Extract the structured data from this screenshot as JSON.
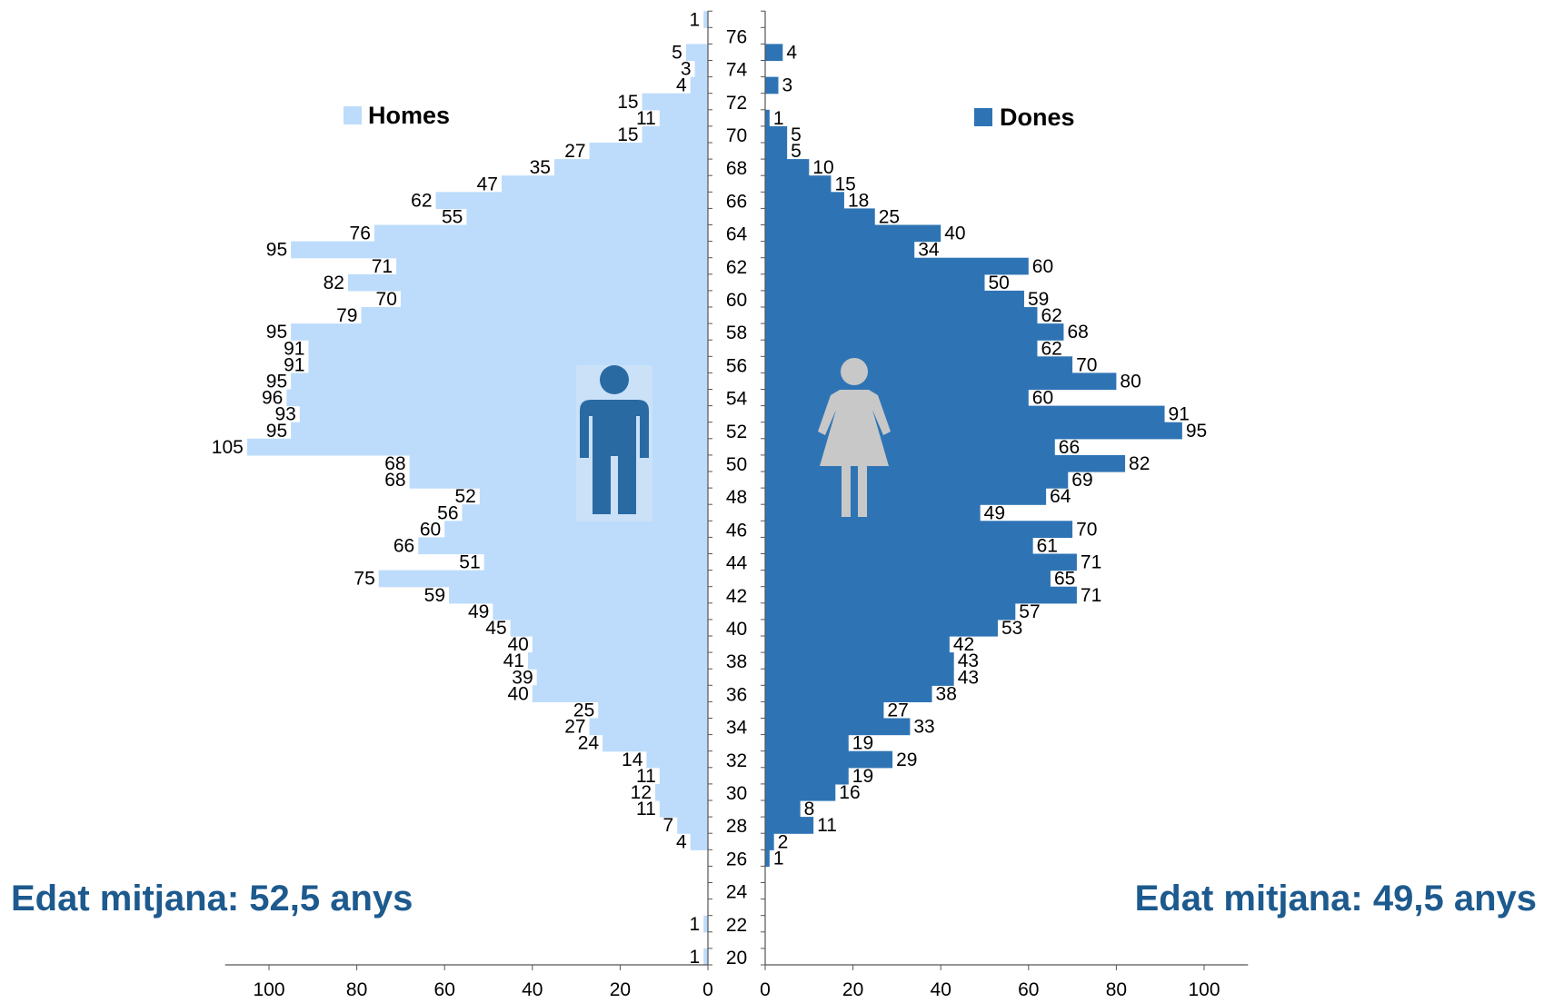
{
  "chart_data": {
    "type": "bar",
    "orientation": "horizontal",
    "layout": "population-pyramid",
    "ages": [
      20,
      21,
      22,
      23,
      24,
      25,
      26,
      27,
      28,
      29,
      30,
      31,
      32,
      33,
      34,
      35,
      36,
      37,
      38,
      39,
      40,
      41,
      42,
      43,
      44,
      45,
      46,
      47,
      48,
      49,
      50,
      51,
      52,
      53,
      54,
      55,
      56,
      57,
      58,
      59,
      60,
      61,
      62,
      63,
      64,
      65,
      66,
      67,
      68,
      69,
      70,
      71,
      72,
      73,
      74,
      75,
      76,
      77
    ],
    "age_ticks": [
      20,
      22,
      24,
      26,
      28,
      30,
      32,
      34,
      36,
      38,
      40,
      42,
      44,
      46,
      48,
      50,
      52,
      54,
      56,
      58,
      60,
      62,
      64,
      66,
      68,
      70,
      72,
      74,
      76
    ],
    "series": [
      {
        "name": "Homes",
        "side": "left",
        "color": "#bddcfb",
        "values": [
          1,
          0,
          1,
          0,
          0,
          0,
          0,
          4,
          7,
          11,
          12,
          11,
          14,
          24,
          27,
          25,
          40,
          39,
          41,
          40,
          45,
          49,
          59,
          75,
          51,
          66,
          60,
          56,
          52,
          68,
          68,
          105,
          95,
          93,
          96,
          95,
          91,
          91,
          95,
          79,
          70,
          82,
          71,
          95,
          76,
          55,
          62,
          47,
          35,
          27,
          15,
          11,
          15,
          4,
          3,
          5,
          0,
          1
        ]
      },
      {
        "name": "Dones",
        "side": "right",
        "color": "#2e74b5",
        "values": [
          0,
          0,
          0,
          0,
          0,
          0,
          1,
          2,
          11,
          8,
          16,
          19,
          29,
          19,
          33,
          27,
          38,
          43,
          43,
          42,
          53,
          57,
          71,
          65,
          71,
          61,
          70,
          49,
          64,
          69,
          82,
          66,
          95,
          91,
          60,
          80,
          70,
          62,
          68,
          62,
          59,
          50,
          60,
          34,
          40,
          25,
          18,
          15,
          10,
          5,
          5,
          1,
          0,
          3,
          0,
          4,
          0,
          0
        ]
      }
    ],
    "xlim": [
      0,
      110
    ],
    "x_ticks": [
      0,
      20,
      40,
      60,
      80,
      100
    ],
    "legend": [
      "Homes",
      "Dones"
    ],
    "annotations": {
      "left_mean": "Edat mitjana: 52,5 anys",
      "right_mean": "Edat mitjana: 49,5 anys"
    },
    "accent_color": "#1d5a8e"
  }
}
